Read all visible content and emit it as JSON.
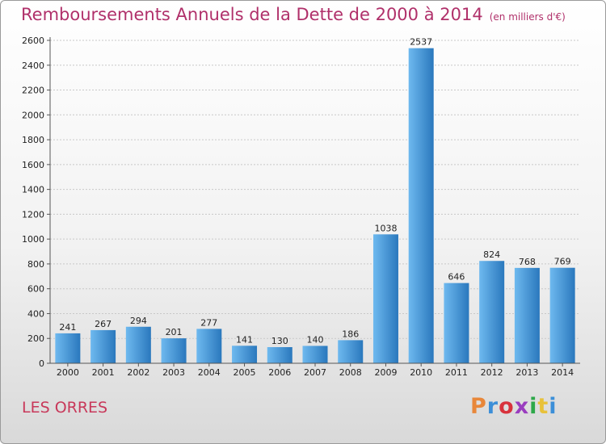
{
  "title": "Remboursements Annuels de la Dette de 2000 à 2014",
  "unit_note": "(en milliers d'€)",
  "commune": "LES ORRES",
  "logo": {
    "text": "Proxiti",
    "colors": [
      "#e8873a",
      "#3c8fd8",
      "#d8323c",
      "#9a3dbf",
      "#2ea84a",
      "#e8c13a",
      "#3c8fd8"
    ]
  },
  "colors": {
    "title": "#b0306a",
    "bar_light": "#6eb9ef",
    "bar_dark": "#2a78bd"
  },
  "chart_data": {
    "type": "bar",
    "title": "Remboursements Annuels de la Dette de 2000 à 2014",
    "categories": [
      "2000",
      "2001",
      "2002",
      "2003",
      "2004",
      "2005",
      "2006",
      "2007",
      "2008",
      "2009",
      "2010",
      "2011",
      "2012",
      "2013",
      "2014"
    ],
    "values": [
      241,
      267,
      294,
      201,
      277,
      141,
      130,
      140,
      186,
      1038,
      2537,
      646,
      824,
      768,
      769
    ],
    "ylim": [
      0,
      2600
    ],
    "yticks": [
      0,
      200,
      400,
      600,
      800,
      1000,
      1200,
      1400,
      1600,
      1800,
      2000,
      2200,
      2400,
      2600
    ],
    "grid": true,
    "xlabel": "",
    "ylabel": ""
  }
}
